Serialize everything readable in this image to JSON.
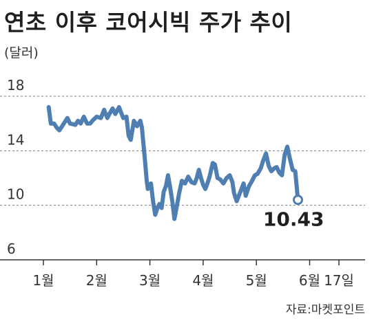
{
  "title": "연초 이후 코어시빅 주가 추이",
  "unit_label": "(달러)",
  "source": "자료:마켓포인트",
  "colors": {
    "line": "#4f7fb2",
    "grid": "#7a7a7a",
    "axis": "#333333",
    "marker_fill": "#ffffff"
  },
  "chart_data": {
    "type": "line",
    "title": "연초 이후 코어시빅 주가 추이",
    "ylabel": "(달러)",
    "xlabel": "",
    "ylim": [
      6,
      18
    ],
    "yticks": [
      18,
      14,
      10,
      6
    ],
    "gridlines_at": [
      18,
      14,
      10
    ],
    "grid": "horizontal dashed",
    "xlim": [
      0.9,
      7.0
    ],
    "x_ticks": [
      {
        "x": 1,
        "label": "1월"
      },
      {
        "x": 2,
        "label": "2월"
      },
      {
        "x": 3,
        "label": "3월"
      },
      {
        "x": 4,
        "label": "4월"
      },
      {
        "x": 5,
        "label": "5월"
      },
      {
        "x": 6,
        "label": "6월"
      },
      {
        "x": 6.55,
        "label": "17일"
      }
    ],
    "last_value_label": "10.43",
    "series": [
      {
        "points": [
          [
            1.1,
            17.2
          ],
          [
            1.14,
            16.0
          ],
          [
            1.2,
            16.0
          ],
          [
            1.25,
            15.7
          ],
          [
            1.3,
            15.5
          ],
          [
            1.35,
            15.8
          ],
          [
            1.45,
            16.4
          ],
          [
            1.5,
            16.0
          ],
          [
            1.6,
            15.9
          ],
          [
            1.65,
            16.2
          ],
          [
            1.7,
            16.0
          ],
          [
            1.76,
            16.5
          ],
          [
            1.82,
            16.0
          ],
          [
            1.88,
            16.0
          ],
          [
            1.92,
            16.2
          ],
          [
            2.0,
            16.5
          ],
          [
            2.08,
            16.4
          ],
          [
            2.14,
            17.0
          ],
          [
            2.2,
            16.4
          ],
          [
            2.24,
            16.7
          ],
          [
            2.3,
            17.1
          ],
          [
            2.35,
            16.7
          ],
          [
            2.42,
            17.2
          ],
          [
            2.5,
            16.4
          ],
          [
            2.56,
            16.5
          ],
          [
            2.6,
            15.1
          ],
          [
            2.64,
            14.8
          ],
          [
            2.7,
            16.2
          ],
          [
            2.76,
            15.8
          ],
          [
            2.82,
            16.2
          ],
          [
            2.85,
            15.7
          ],
          [
            2.9,
            13.6
          ],
          [
            2.94,
            11.8
          ],
          [
            2.96,
            11.2
          ],
          [
            2.98,
            11.3
          ],
          [
            3.02,
            11.6
          ],
          [
            3.06,
            10.3
          ],
          [
            3.1,
            9.3
          ],
          [
            3.14,
            9.8
          ],
          [
            3.18,
            10.1
          ],
          [
            3.22,
            9.8
          ],
          [
            3.26,
            11.0
          ],
          [
            3.3,
            11.4
          ],
          [
            3.34,
            12.2
          ],
          [
            3.38,
            11.3
          ],
          [
            3.42,
            10.3
          ],
          [
            3.46,
            9.0
          ],
          [
            3.5,
            9.8
          ],
          [
            3.55,
            10.9
          ],
          [
            3.6,
            11.8
          ],
          [
            3.66,
            11.6
          ],
          [
            3.72,
            12.1
          ],
          [
            3.78,
            11.7
          ],
          [
            3.84,
            11.6
          ],
          [
            3.88,
            12.0
          ],
          [
            3.92,
            12.6
          ],
          [
            3.96,
            12.0
          ],
          [
            4.0,
            11.5
          ],
          [
            4.04,
            11.2
          ],
          [
            4.08,
            11.6
          ],
          [
            4.12,
            12.1
          ],
          [
            4.18,
            13.1
          ],
          [
            4.22,
            13.0
          ],
          [
            4.27,
            12.0
          ],
          [
            4.32,
            11.9
          ],
          [
            4.38,
            11.6
          ],
          [
            4.44,
            12.0
          ],
          [
            4.5,
            12.2
          ],
          [
            4.55,
            11.7
          ],
          [
            4.58,
            10.9
          ],
          [
            4.63,
            10.3
          ],
          [
            4.7,
            11.0
          ],
          [
            4.76,
            11.6
          ],
          [
            4.8,
            10.7
          ],
          [
            4.86,
            11.4
          ],
          [
            4.92,
            11.8
          ],
          [
            4.97,
            12.2
          ],
          [
            5.02,
            12.3
          ],
          [
            5.08,
            12.7
          ],
          [
            5.13,
            13.3
          ],
          [
            5.18,
            13.8
          ],
          [
            5.23,
            12.9
          ],
          [
            5.28,
            12.5
          ],
          [
            5.33,
            12.7
          ],
          [
            5.38,
            12.8
          ],
          [
            5.43,
            12.4
          ],
          [
            5.48,
            12.2
          ],
          [
            5.53,
            13.7
          ],
          [
            5.58,
            14.3
          ],
          [
            5.63,
            13.4
          ],
          [
            5.68,
            12.6
          ],
          [
            5.73,
            12.5
          ],
          [
            5.78,
            10.4
          ]
        ]
      }
    ]
  }
}
